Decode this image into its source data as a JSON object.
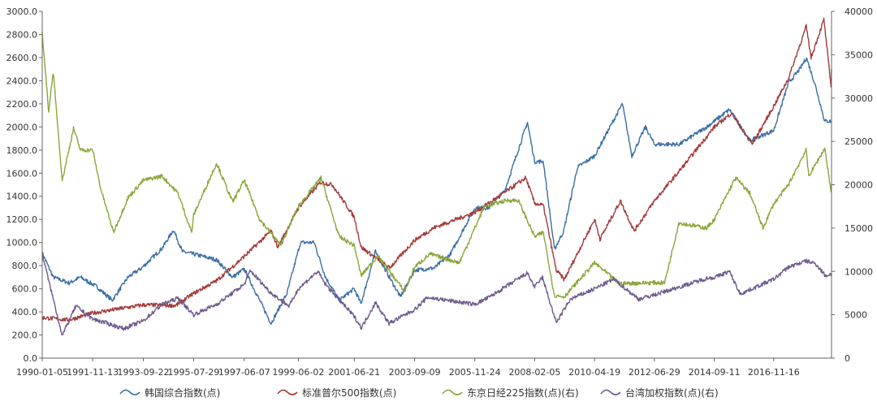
{
  "chart_data": {
    "type": "line",
    "x_ticks": [
      "1990-01-05",
      "1991-11-13",
      "1993-09-22",
      "1995-07-29",
      "1997-06-07",
      "1999-06-02",
      "2001-06-21",
      "2003-09-09",
      "2005-11-24",
      "2008-02-05",
      "2010-04-19",
      "2012-06-29",
      "2014-09-11",
      "2016-11-16"
    ],
    "x_range": [
      "1990-01-05",
      "2018-12-31"
    ],
    "y_left": {
      "range": [
        0,
        3000
      ],
      "ticks": [
        "0.0",
        "200.0",
        "400.0",
        "600.0",
        "800.0",
        "1000.0",
        "1200.0",
        "1400.0",
        "1600.0",
        "1800.0",
        "2000.0",
        "2200.0",
        "2400.0",
        "2600.0",
        "2800.0",
        "3000.0"
      ]
    },
    "y_right": {
      "range": [
        0,
        40000
      ],
      "ticks": [
        "0",
        "5000",
        "10000",
        "15000",
        "20000",
        "25000",
        "30000",
        "35000",
        "40000"
      ]
    },
    "grid": false,
    "legend_position": "bottom",
    "series": [
      {
        "name": "韩国综合指数(点)",
        "axis": "left",
        "color": "#3a6ea5",
        "points": [
          [
            "1990-01-05",
            910
          ],
          [
            "1990-06-01",
            700
          ],
          [
            "1991-01-01",
            650
          ],
          [
            "1991-06-01",
            700
          ],
          [
            "1992-01-01",
            620
          ],
          [
            "1992-08-01",
            500
          ],
          [
            "1993-03-01",
            700
          ],
          [
            "1993-09-01",
            780
          ],
          [
            "1994-06-01",
            950
          ],
          [
            "1994-11-01",
            1110
          ],
          [
            "1995-03-01",
            920
          ],
          [
            "1995-07-29",
            900
          ],
          [
            "1996-06-01",
            850
          ],
          [
            "1997-01-01",
            700
          ],
          [
            "1997-06-07",
            770
          ],
          [
            "1998-06-01",
            300
          ],
          [
            "1999-01-01",
            560
          ],
          [
            "1999-07-01",
            1000
          ],
          [
            "2000-01-01",
            1000
          ],
          [
            "2000-06-01",
            700
          ],
          [
            "2000-12-01",
            500
          ],
          [
            "2001-06-21",
            600
          ],
          [
            "2001-09-20",
            470
          ],
          [
            "2002-04-01",
            920
          ],
          [
            "2003-03-01",
            530
          ],
          [
            "2003-09-09",
            760
          ],
          [
            "2004-06-01",
            780
          ],
          [
            "2005-01-01",
            900
          ],
          [
            "2005-11-24",
            1300
          ],
          [
            "2006-06-01",
            1300
          ],
          [
            "2007-01-01",
            1450
          ],
          [
            "2007-10-31",
            2040
          ],
          [
            "2008-02-05",
            1700
          ],
          [
            "2008-06-01",
            1700
          ],
          [
            "2008-10-27",
            940
          ],
          [
            "2009-03-01",
            1100
          ],
          [
            "2009-09-01",
            1650
          ],
          [
            "2010-04-19",
            1750
          ],
          [
            "2011-04-27",
            2200
          ],
          [
            "2011-09-01",
            1750
          ],
          [
            "2012-03-01",
            2000
          ],
          [
            "2012-06-29",
            1850
          ],
          [
            "2013-06-01",
            1850
          ],
          [
            "2014-06-01",
            2000
          ],
          [
            "2015-04-01",
            2150
          ],
          [
            "2016-01-01",
            1880
          ],
          [
            "2016-11-16",
            1970
          ],
          [
            "2017-06-01",
            2380
          ],
          [
            "2017-11-01",
            2500
          ],
          [
            "2018-01-29",
            2600
          ],
          [
            "2018-06-01",
            2350
          ],
          [
            "2018-10-01",
            2050
          ],
          [
            "2018-12-31",
            2050
          ]
        ]
      },
      {
        "name": "标准普尔500指数(点)",
        "axis": "left",
        "color": "#a33a3a",
        "points": [
          [
            "1990-01-05",
            350
          ],
          [
            "1991-01-01",
            330
          ],
          [
            "1991-11-13",
            390
          ],
          [
            "1993-09-22",
            460
          ],
          [
            "1994-12-01",
            455
          ],
          [
            "1995-07-29",
            560
          ],
          [
            "1996-06-01",
            670
          ],
          [
            "1997-06-07",
            880
          ],
          [
            "1998-06-01",
            1100
          ],
          [
            "1998-09-01",
            960
          ],
          [
            "1999-06-02",
            1300
          ],
          [
            "2000-03-24",
            1520
          ],
          [
            "2000-09-01",
            1500
          ],
          [
            "2001-06-21",
            1220
          ],
          [
            "2001-09-21",
            960
          ],
          [
            "2002-10-09",
            780
          ],
          [
            "2003-09-09",
            1020
          ],
          [
            "2004-06-01",
            1130
          ],
          [
            "2005-11-24",
            1260
          ],
          [
            "2006-12-01",
            1420
          ],
          [
            "2007-10-09",
            1560
          ],
          [
            "2008-02-05",
            1340
          ],
          [
            "2008-06-01",
            1320
          ],
          [
            "2008-11-20",
            760
          ],
          [
            "2009-03-09",
            680
          ],
          [
            "2010-04-19",
            1200
          ],
          [
            "2010-07-01",
            1030
          ],
          [
            "2011-04-01",
            1360
          ],
          [
            "2011-10-01",
            1100
          ],
          [
            "2012-06-29",
            1360
          ],
          [
            "2013-06-01",
            1620
          ],
          [
            "2014-09-11",
            2000
          ],
          [
            "2015-05-01",
            2120
          ],
          [
            "2016-02-01",
            1850
          ],
          [
            "2016-11-16",
            2180
          ],
          [
            "2017-06-01",
            2420
          ],
          [
            "2018-01-26",
            2870
          ],
          [
            "2018-04-01",
            2600
          ],
          [
            "2018-09-20",
            2930
          ],
          [
            "2018-12-24",
            2350
          ],
          [
            "2018-12-31",
            2500
          ]
        ]
      },
      {
        "name": "东京日经225指数(点)(右)",
        "axis": "right",
        "color": "#8aa63a",
        "points": [
          [
            "1990-01-05",
            37500
          ],
          [
            "1990-04-01",
            28500
          ],
          [
            "1990-06-01",
            33000
          ],
          [
            "1990-10-01",
            20500
          ],
          [
            "1991-03-01",
            26500
          ],
          [
            "1991-06-01",
            24000
          ],
          [
            "1991-11-13",
            24000
          ],
          [
            "1992-03-01",
            19500
          ],
          [
            "1992-08-18",
            14500
          ],
          [
            "1993-03-01",
            18500
          ],
          [
            "1993-09-22",
            20500
          ],
          [
            "1994-06-01",
            21000
          ],
          [
            "1995-01-01",
            19000
          ],
          [
            "1995-07-03",
            14500
          ],
          [
            "1995-07-29",
            16500
          ],
          [
            "1996-06-01",
            22500
          ],
          [
            "1997-01-01",
            18000
          ],
          [
            "1997-06-07",
            20500
          ],
          [
            "1998-01-01",
            16000
          ],
          [
            "1998-10-09",
            13000
          ],
          [
            "1999-06-02",
            17500
          ],
          [
            "2000-04-01",
            20800
          ],
          [
            "2000-12-01",
            14000
          ],
          [
            "2001-06-21",
            13000
          ],
          [
            "2001-09-21",
            9500
          ],
          [
            "2002-05-01",
            11800
          ],
          [
            "2003-04-28",
            7700
          ],
          [
            "2003-09-09",
            10500
          ],
          [
            "2004-04-01",
            12000
          ],
          [
            "2005-05-01",
            11000
          ],
          [
            "2005-11-24",
            15000
          ],
          [
            "2006-04-01",
            17500
          ],
          [
            "2007-02-01",
            18200
          ],
          [
            "2007-07-01",
            18200
          ],
          [
            "2008-02-05",
            14000
          ],
          [
            "2008-06-01",
            14500
          ],
          [
            "2008-10-27",
            7200
          ],
          [
            "2009-03-10",
            7100
          ],
          [
            "2010-04-19",
            11000
          ],
          [
            "2011-03-15",
            8600
          ],
          [
            "2012-06-29",
            8700
          ],
          [
            "2012-11-14",
            8700
          ],
          [
            "2013-05-23",
            15600
          ],
          [
            "2014-06-01",
            15000
          ],
          [
            "2014-09-11",
            16000
          ],
          [
            "2015-06-24",
            20800
          ],
          [
            "2016-01-01",
            19000
          ],
          [
            "2016-06-24",
            15000
          ],
          [
            "2016-11-16",
            17800
          ],
          [
            "2017-06-01",
            20000
          ],
          [
            "2018-01-23",
            24000
          ],
          [
            "2018-03-01",
            21000
          ],
          [
            "2018-10-02",
            24200
          ],
          [
            "2018-12-25",
            19200
          ],
          [
            "2018-12-31",
            20000
          ]
        ]
      },
      {
        "name": "台湾加权指数(点)(右)",
        "axis": "right",
        "color": "#6e5a8e",
        "points": [
          [
            "1990-01-05",
            12000
          ],
          [
            "1990-10-01",
            2600
          ],
          [
            "1991-04-01",
            6000
          ],
          [
            "1991-11-13",
            4500
          ],
          [
            "1992-06-01",
            4000
          ],
          [
            "1993-01-01",
            3400
          ],
          [
            "1993-09-22",
            4300
          ],
          [
            "1994-06-01",
            6200
          ],
          [
            "1995-01-01",
            6900
          ],
          [
            "1995-07-29",
            5000
          ],
          [
            "1996-06-01",
            6200
          ],
          [
            "1997-06-07",
            8500
          ],
          [
            "1997-08-27",
            10100
          ],
          [
            "1998-06-01",
            7500
          ],
          [
            "1999-02-01",
            6000
          ],
          [
            "1999-06-02",
            8000
          ],
          [
            "2000-02-17",
            10000
          ],
          [
            "2000-06-01",
            8500
          ],
          [
            "2001-06-21",
            4800
          ],
          [
            "2001-09-26",
            3500
          ],
          [
            "2002-04-01",
            6400
          ],
          [
            "2002-10-01",
            4000
          ],
          [
            "2003-09-09",
            5600
          ],
          [
            "2004-03-01",
            7000
          ],
          [
            "2005-11-24",
            6200
          ],
          [
            "2006-06-01",
            7000
          ],
          [
            "2007-10-30",
            9800
          ],
          [
            "2008-02-05",
            8200
          ],
          [
            "2008-05-19",
            9300
          ],
          [
            "2008-11-20",
            4100
          ],
          [
            "2009-06-01",
            6800
          ],
          [
            "2010-04-19",
            8000
          ],
          [
            "2011-01-01",
            9100
          ],
          [
            "2011-12-01",
            6800
          ],
          [
            "2012-06-29",
            7300
          ],
          [
            "2014-06-01",
            9200
          ],
          [
            "2014-09-11",
            9300
          ],
          [
            "2015-04-01",
            10000
          ],
          [
            "2015-08-24",
            7400
          ],
          [
            "2016-11-16",
            9100
          ],
          [
            "2017-06-01",
            10500
          ],
          [
            "2018-01-23",
            11200
          ],
          [
            "2018-06-01",
            10900
          ],
          [
            "2018-10-11",
            9500
          ],
          [
            "2018-12-31",
            9700
          ]
        ]
      }
    ]
  }
}
